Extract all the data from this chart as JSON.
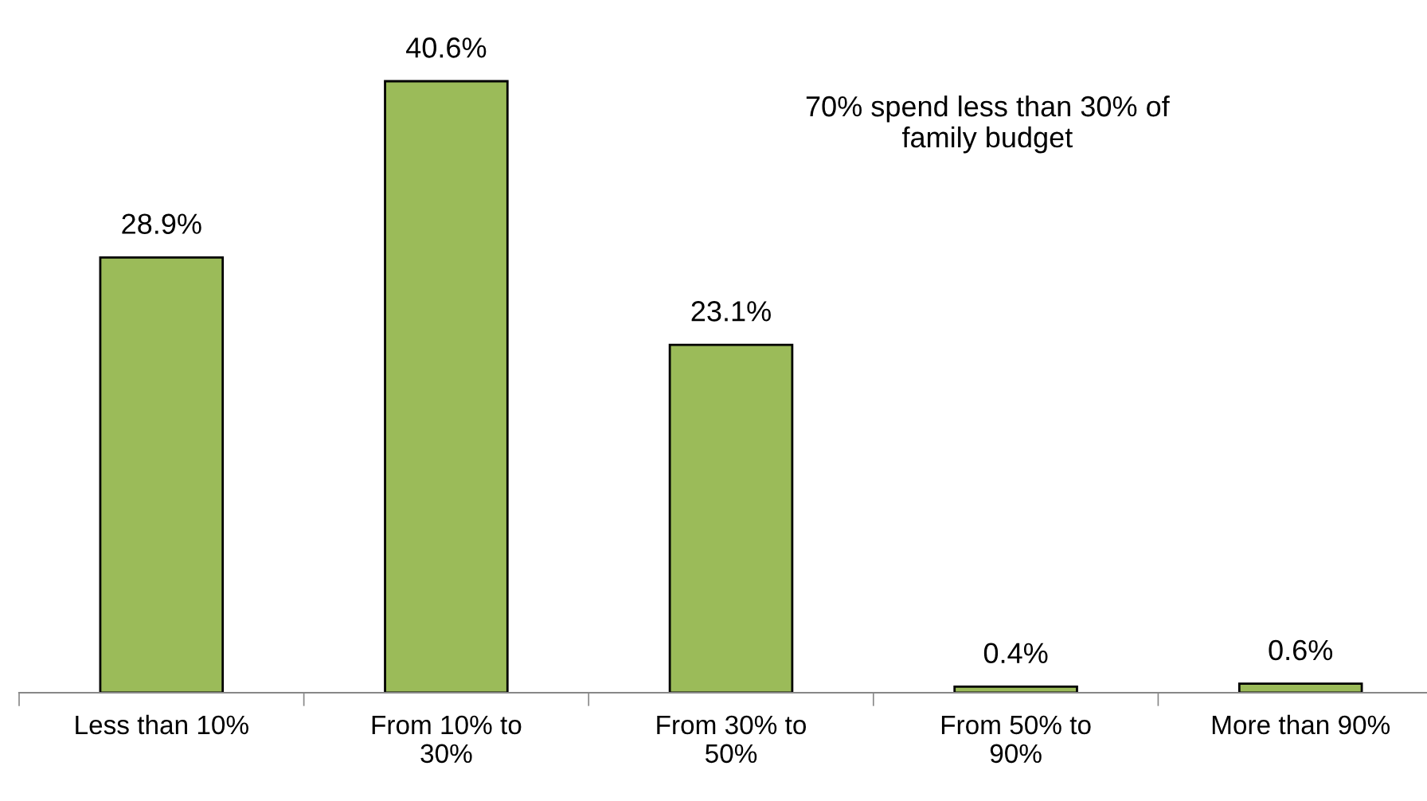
{
  "chart_data": {
    "type": "bar",
    "categories": [
      "Less than 10%",
      "From 10% to\n30%",
      "From 30% to\n50%",
      "From 50% to\n90%",
      "More than 90%"
    ],
    "values": [
      28.9,
      40.6,
      23.1,
      0.4,
      0.6
    ],
    "value_labels": [
      "28.9%",
      "40.6%",
      "23.1%",
      "0.4%",
      "0.6%"
    ],
    "color": "#9bbb59",
    "annotations": [
      "70% spend less than 30% of\nfamily budget"
    ],
    "grid": false,
    "legend": false
  }
}
